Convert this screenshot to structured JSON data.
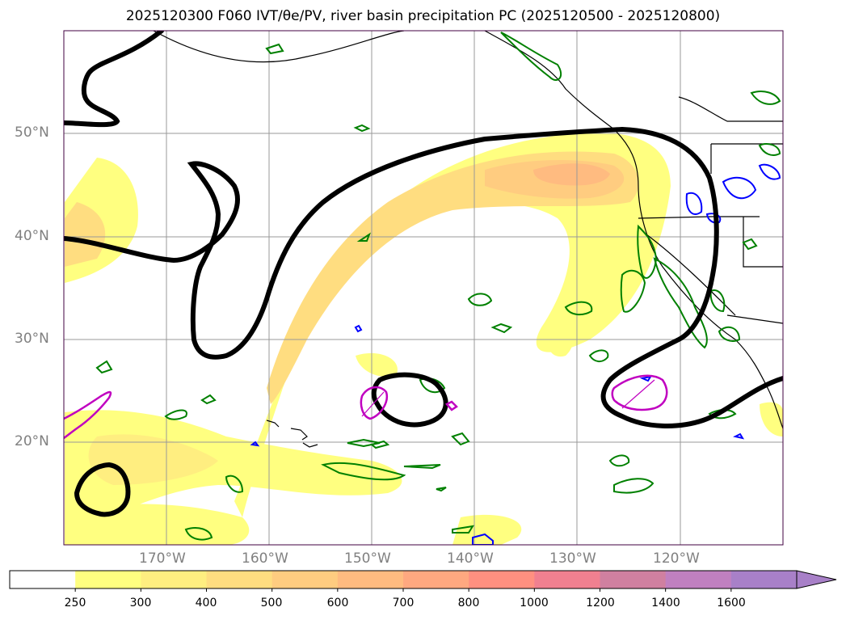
{
  "title": "2025120300 F060 IVT/θe/PV, river basin precipitation PC (2025120500 - 2025120800)",
  "map": {
    "lat_labels": [
      "50°N",
      "40°N",
      "30°N",
      "20°N"
    ],
    "lon_labels": [
      "170°W",
      "160°W",
      "150°W",
      "140°W",
      "130°W",
      "120°W"
    ],
    "colors": {
      "theta_e_contour": "#000000",
      "pv_contour": "#c000c0",
      "precip_green": "#008000",
      "precip_blue": "#0000ff",
      "coastline": "#000000",
      "gridline": "#999999"
    }
  },
  "colorbar": {
    "levels": [
      "250",
      "300",
      "400",
      "500",
      "600",
      "700",
      "800",
      "1000",
      "1200",
      "1400",
      "1600"
    ],
    "colors": [
      "#ffffff",
      "#ffff80",
      "#ffee80",
      "#ffdd80",
      "#ffcc80",
      "#ffbb80",
      "#ffa880",
      "#ff9080",
      "#f08090",
      "#d080a0",
      "#c080c0",
      "#a880c8"
    ],
    "extend": "max"
  }
}
